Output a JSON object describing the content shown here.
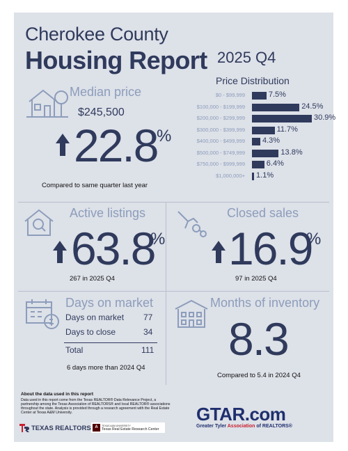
{
  "header": {
    "county": "Cherokee County",
    "title": "Housing Report",
    "quarter": "2025 Q4"
  },
  "median_price": {
    "label": "Median price",
    "value": "$245,500",
    "change": "22.8",
    "unit": "%",
    "note": "Compared to same quarter last year"
  },
  "price_distribution": {
    "title": "Price Distribution",
    "chart_data": {
      "type": "bar",
      "categories": [
        "$0 - $99,999",
        "$100,000 - $199,999",
        "$200,000 - $299,999",
        "$300,000 - $399,999",
        "$400,000 - $499,999",
        "$500,000 - $749,999",
        "$750,000 - $999,999",
        "$1,000,000+"
      ],
      "values": [
        7.5,
        24.5,
        30.9,
        11.7,
        4.3,
        13.8,
        6.4,
        1.1
      ],
      "labels": [
        "7.5%",
        "24.5%",
        "30.9%",
        "11.7%",
        "4.3%",
        "13.8%",
        "6.4%",
        "1.1%"
      ],
      "orientation": "horizontal"
    }
  },
  "active_listings": {
    "label": "Active listings",
    "change": "63.8",
    "unit": "%",
    "note": "267 in 2025 Q4"
  },
  "closed_sales": {
    "label": "Closed sales",
    "change": "16.9",
    "unit": "%",
    "note": "97 in 2025 Q4"
  },
  "days_on_market": {
    "label": "Days on market",
    "rows": [
      {
        "name": "Days on market",
        "value": "77"
      },
      {
        "name": "Days to close",
        "value": "34"
      }
    ],
    "total_label": "Total",
    "total_value": "111",
    "note": "6 days more than 2024 Q4"
  },
  "months_inventory": {
    "label": "Months of inventory",
    "value": "8.3",
    "note": "Compared to 5.4 in 2024 Q4"
  },
  "footer": {
    "about_title": "About the data used in this report",
    "about_text": "Data used in this report come from the Texas REALTOR® Data Relevance Project, a partnership among the Texas Association of REALTORS® and local REALTOR® associations throughout the state. Analysis is provided through a research agreement with the Real Estate Center at Texas A&M University.",
    "texas_realtors": "TEXAS REALTORS",
    "tamu_small": "TEXAS A&M UNIVERSITY",
    "tamu_center": "Texas Real Estate Research Center",
    "gtar_logo": "GTAR.com",
    "gtar_full_pre": "Greater Tyler ",
    "gtar_full_assoc": "Association",
    "gtar_full_post": " of REALTORS®"
  },
  "colors": {
    "navy": "#2f3a5c",
    "steel": "#8c9dbb",
    "accent_red": "#c8202f"
  },
  "icons": [
    "house-tree-icon",
    "house-search-icon",
    "hand-keys-icon",
    "calendar-money-icon",
    "building-icon"
  ]
}
